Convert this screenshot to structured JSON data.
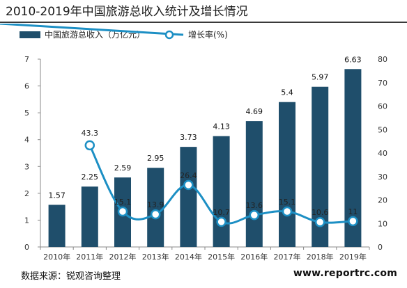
{
  "title": "2010-2019年中国旅游总收入统计及增长情况",
  "source": "数据来源：锐观咨询整理",
  "watermark": "www.reportrc.com",
  "colors": {
    "bar": "#1f4e6b",
    "line": "#1c8fc4",
    "marker_fill": "#ffffff"
  },
  "chart_data": {
    "type": "bar",
    "categories": [
      "2010年",
      "2011年",
      "2012年",
      "2013年",
      "2014年",
      "2015年",
      "2016年",
      "2017年",
      "2018年",
      "2019年"
    ],
    "series": [
      {
        "name": "中国旅游总收入（万亿元）",
        "type": "bar",
        "axis": "left",
        "values": [
          1.57,
          2.25,
          2.59,
          2.95,
          3.73,
          4.13,
          4.69,
          5.4,
          5.97,
          6.63
        ],
        "labels": [
          "1.57",
          "2.25",
          "2.59",
          "2.95",
          "3.73",
          "4.13",
          "4.69",
          "5.4",
          "5.97",
          "6.63"
        ]
      },
      {
        "name": "增长率(%)",
        "type": "line",
        "axis": "right",
        "values": [
          null,
          43.3,
          15.1,
          13.9,
          26.4,
          10.7,
          13.6,
          15.1,
          10.6,
          11
        ],
        "labels": [
          "",
          "43.3",
          "15.1",
          "13.9",
          "26.4",
          "10.7",
          "13.6",
          "15.1",
          "10.6",
          "11"
        ]
      }
    ],
    "y_left": {
      "min": 0,
      "max": 7,
      "ticks": [
        "0",
        "1",
        "2",
        "3",
        "4",
        "5",
        "6",
        "7"
      ]
    },
    "y_right": {
      "min": 0,
      "max": 80,
      "ticks": [
        "0",
        "10",
        "20",
        "30",
        "40",
        "50",
        "60",
        "70",
        "80"
      ]
    },
    "grid": false,
    "legend_position": "top-left"
  }
}
